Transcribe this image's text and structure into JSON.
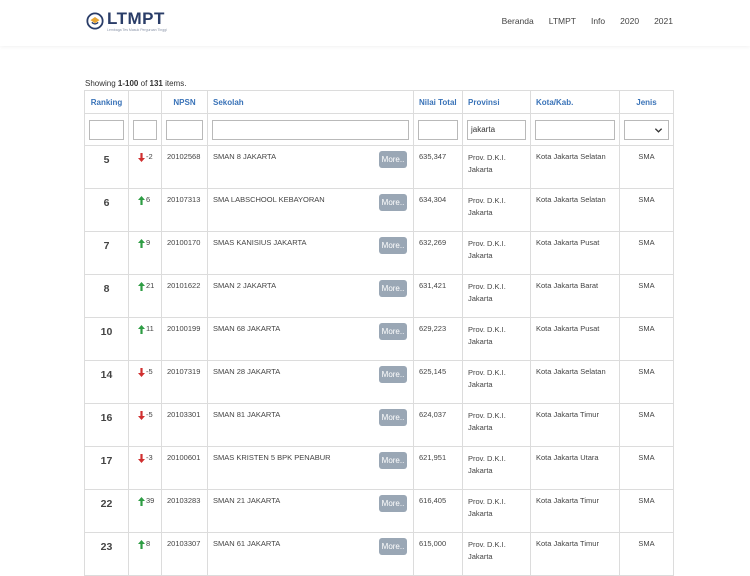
{
  "brand": {
    "title": "LTMPT",
    "subtitle": "Lembaga Tes Masuk Perguruan Tinggi"
  },
  "nav": [
    "Beranda",
    "LTMPT",
    "Info",
    "2020",
    "2021"
  ],
  "summary": {
    "prefix": "Showing ",
    "range": "1-100",
    "middle": " of ",
    "total": "131",
    "suffix": " items."
  },
  "table": {
    "headers": [
      "Ranking",
      "",
      "NPSN",
      "Sekolah",
      "Nilai Total",
      "Provinsi",
      "Kota/Kab.",
      "Jenis"
    ],
    "filters": {
      "provinsi": "jakarta",
      "jenis": ""
    },
    "more_label": "More..",
    "rows": [
      {
        "rank": "5",
        "dir": "down",
        "change": "-2",
        "npsn": "20102568",
        "school": "SMAN 8 JAKARTA",
        "score": "635,347",
        "prov1": "Prov. D.K.I.",
        "prov2": "Jakarta",
        "city": "Kota Jakarta Selatan",
        "jenis": "SMA"
      },
      {
        "rank": "6",
        "dir": "up",
        "change": "6",
        "npsn": "20107313",
        "school": "SMA LABSCHOOL KEBAYORAN",
        "score": "634,304",
        "prov1": "Prov. D.K.I.",
        "prov2": "Jakarta",
        "city": "Kota Jakarta Selatan",
        "jenis": "SMA"
      },
      {
        "rank": "7",
        "dir": "up",
        "change": "9",
        "npsn": "20100170",
        "school": "SMAS KANISIUS JAKARTA",
        "score": "632,269",
        "prov1": "Prov. D.K.I.",
        "prov2": "Jakarta",
        "city": "Kota Jakarta Pusat",
        "jenis": "SMA"
      },
      {
        "rank": "8",
        "dir": "up",
        "change": "21",
        "npsn": "20101622",
        "school": "SMAN 2 JAKARTA",
        "score": "631,421",
        "prov1": "Prov. D.K.I.",
        "prov2": "Jakarta",
        "city": "Kota Jakarta Barat",
        "jenis": "SMA"
      },
      {
        "rank": "10",
        "dir": "up",
        "change": "11",
        "npsn": "20100199",
        "school": "SMAN 68 JAKARTA",
        "score": "629,223",
        "prov1": "Prov. D.K.I.",
        "prov2": "Jakarta",
        "city": "Kota Jakarta Pusat",
        "jenis": "SMA"
      },
      {
        "rank": "14",
        "dir": "down",
        "change": "-5",
        "npsn": "20107319",
        "school": "SMAN 28 JAKARTA",
        "score": "625,145",
        "prov1": "Prov. D.K.I.",
        "prov2": "Jakarta",
        "city": "Kota Jakarta Selatan",
        "jenis": "SMA"
      },
      {
        "rank": "16",
        "dir": "down",
        "change": "-5",
        "npsn": "20103301",
        "school": "SMAN 81 JAKARTA",
        "score": "624,037",
        "prov1": "Prov. D.K.I.",
        "prov2": "Jakarta",
        "city": "Kota Jakarta Timur",
        "jenis": "SMA"
      },
      {
        "rank": "17",
        "dir": "down",
        "change": "-3",
        "npsn": "20100601",
        "school": "SMAS KRISTEN 5 BPK PENABUR",
        "score": "621,951",
        "prov1": "Prov. D.K.I.",
        "prov2": "Jakarta",
        "city": "Kota Jakarta Utara",
        "jenis": "SMA"
      },
      {
        "rank": "22",
        "dir": "up",
        "change": "39",
        "npsn": "20103283",
        "school": "SMAN 21 JAKARTA",
        "score": "616,405",
        "prov1": "Prov. D.K.I.",
        "prov2": "Jakarta",
        "city": "Kota Jakarta Timur",
        "jenis": "SMA"
      },
      {
        "rank": "23",
        "dir": "up",
        "change": "8",
        "npsn": "20103307",
        "school": "SMAN 61 JAKARTA",
        "score": "615,000",
        "prov1": "Prov. D.K.I.",
        "prov2": "Jakarta",
        "city": "Kota Jakarta Timur",
        "jenis": "SMA"
      }
    ]
  },
  "colors": {
    "header_text": "#3a73b8",
    "arrow_up": "#2e9d44",
    "arrow_down": "#d03030",
    "button_bg": "#9aa7b5",
    "brand": "#2a3d68"
  }
}
